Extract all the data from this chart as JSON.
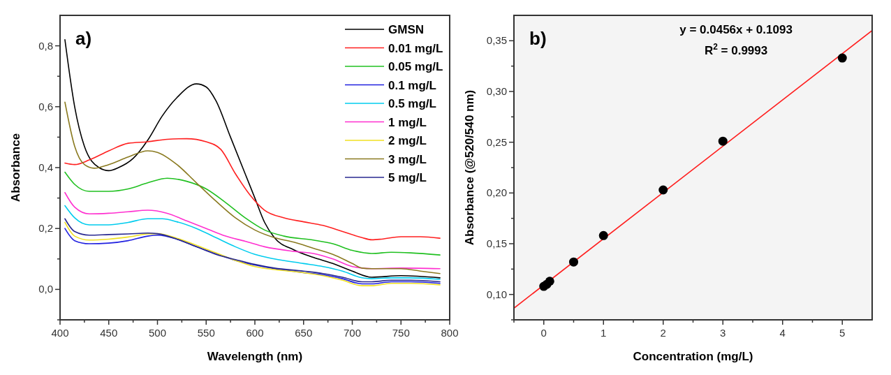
{
  "chart_data": [
    {
      "type": "line",
      "xlabel": "Wavelength (nm)",
      "ylabel": "Absorbance",
      "annotations": [
        "a)"
      ],
      "legend": "top right",
      "xlim": [
        400,
        800
      ],
      "ylim": [
        -0.1,
        0.9
      ],
      "xticks": [
        400,
        {
          "value": 425,
          "label": null
        },
        450,
        {
          "value": 475,
          "label": null
        },
        500,
        {
          "value": 525,
          "label": null
        },
        550,
        {
          "value": 575,
          "label": null
        },
        600,
        {
          "value": 625,
          "label": null
        },
        650,
        {
          "value": 675,
          "label": null
        },
        700,
        {
          "value": 725,
          "label": null
        },
        750,
        {
          "value": 775,
          "label": null
        },
        800
      ],
      "yticks": [
        {
          "value": -0.1,
          "label": null
        },
        {
          "value": 0,
          "label": "0,0"
        },
        {
          "value": 0.1,
          "label": null
        },
        {
          "value": 0.2,
          "label": "0,2"
        },
        {
          "value": 0.3,
          "label": null
        },
        {
          "value": 0.4,
          "label": "0,4"
        },
        {
          "value": 0.5,
          "label": null
        },
        {
          "value": 0.6,
          "label": "0,6"
        },
        {
          "value": 0.7,
          "label": null
        },
        {
          "value": 0.8,
          "label": "0,8"
        }
      ],
      "series": [
        {
          "name": "GMSN",
          "color": "#000000",
          "x": [
            405,
            415,
            425,
            440,
            450,
            460,
            475,
            490,
            505,
            520,
            540,
            550,
            560,
            575,
            590,
            600,
            610,
            620,
            640,
            660,
            680,
            700,
            720,
            750,
            790
          ],
          "values": [
            0.82,
            0.6,
            0.47,
            0.4,
            0.39,
            0.4,
            0.43,
            0.49,
            0.57,
            0.63,
            0.675,
            0.665,
            0.62,
            0.5,
            0.38,
            0.3,
            0.22,
            0.17,
            0.13,
            0.105,
            0.085,
            0.06,
            0.04,
            0.045,
            0.038
          ]
        },
        {
          "name": "0.01 mg/L",
          "color": "#ff2020",
          "x": [
            405,
            415,
            430,
            450,
            470,
            490,
            510,
            530,
            550,
            565,
            580,
            595,
            610,
            630,
            650,
            670,
            690,
            710,
            720,
            730,
            750,
            770,
            790
          ],
          "values": [
            0.415,
            0.41,
            0.425,
            0.455,
            0.48,
            0.485,
            0.493,
            0.495,
            0.485,
            0.46,
            0.38,
            0.31,
            0.26,
            0.235,
            0.222,
            0.21,
            0.19,
            0.17,
            0.163,
            0.165,
            0.173,
            0.173,
            0.168
          ]
        },
        {
          "name": "0.05 mg/L",
          "color": "#20c020",
          "x": [
            405,
            415,
            430,
            450,
            470,
            490,
            510,
            530,
            550,
            570,
            590,
            610,
            630,
            660,
            680,
            700,
            720,
            740,
            760,
            790
          ],
          "values": [
            0.385,
            0.345,
            0.322,
            0.322,
            0.33,
            0.35,
            0.365,
            0.355,
            0.33,
            0.285,
            0.235,
            0.195,
            0.175,
            0.162,
            0.15,
            0.128,
            0.118,
            0.122,
            0.12,
            0.113
          ]
        },
        {
          "name": "0.1 mg/L",
          "color": "#2020e0",
          "x": [
            405,
            415,
            430,
            450,
            470,
            490,
            500,
            520,
            540,
            560,
            580,
            600,
            620,
            650,
            670,
            690,
            710,
            720,
            740,
            760,
            790
          ],
          "values": [
            0.2,
            0.16,
            0.15,
            0.152,
            0.16,
            0.175,
            0.178,
            0.165,
            0.14,
            0.118,
            0.095,
            0.08,
            0.068,
            0.055,
            0.048,
            0.035,
            0.018,
            0.018,
            0.025,
            0.025,
            0.02
          ]
        },
        {
          "name": "0.5 mg/L",
          "color": "#00ccee",
          "x": [
            405,
            415,
            430,
            450,
            470,
            490,
            505,
            520,
            540,
            560,
            580,
            600,
            620,
            650,
            670,
            690,
            710,
            720,
            740,
            760,
            790
          ],
          "values": [
            0.275,
            0.235,
            0.212,
            0.212,
            0.22,
            0.232,
            0.232,
            0.222,
            0.2,
            0.17,
            0.14,
            0.115,
            0.1,
            0.085,
            0.075,
            0.06,
            0.038,
            0.035,
            0.038,
            0.038,
            0.033
          ]
        },
        {
          "name": "1 mg/L",
          "color": "#ff30d0",
          "x": [
            405,
            415,
            430,
            450,
            470,
            490,
            510,
            530,
            550,
            570,
            590,
            610,
            640,
            660,
            680,
            700,
            720,
            750,
            790
          ],
          "values": [
            0.318,
            0.27,
            0.248,
            0.25,
            0.255,
            0.26,
            0.25,
            0.225,
            0.2,
            0.175,
            0.158,
            0.14,
            0.125,
            0.118,
            0.1,
            0.075,
            0.068,
            0.07,
            0.068
          ]
        },
        {
          "name": "2 mg/L",
          "color": "#f0e020",
          "x": [
            405,
            415,
            430,
            450,
            470,
            490,
            500,
            520,
            540,
            560,
            580,
            600,
            620,
            650,
            670,
            690,
            710,
            720,
            740,
            760,
            790
          ],
          "values": [
            0.22,
            0.175,
            0.162,
            0.165,
            0.172,
            0.182,
            0.183,
            0.168,
            0.145,
            0.12,
            0.095,
            0.075,
            0.065,
            0.055,
            0.045,
            0.03,
            0.012,
            0.012,
            0.02,
            0.02,
            0.015
          ]
        },
        {
          "name": "3 mg/L",
          "color": "#8a7a20",
          "x": [
            405,
            415,
            425,
            435,
            450,
            470,
            490,
            500,
            520,
            540,
            560,
            580,
            600,
            620,
            640,
            660,
            680,
            700,
            710,
            720,
            750,
            770,
            790
          ],
          "values": [
            0.615,
            0.47,
            0.41,
            0.398,
            0.41,
            0.435,
            0.455,
            0.45,
            0.41,
            0.35,
            0.29,
            0.235,
            0.195,
            0.17,
            0.155,
            0.135,
            0.115,
            0.085,
            0.07,
            0.068,
            0.068,
            0.06,
            0.052
          ]
        },
        {
          "name": "5 mg/L",
          "color": "#282890",
          "x": [
            405,
            415,
            430,
            450,
            470,
            490,
            500,
            520,
            540,
            560,
            580,
            600,
            620,
            650,
            670,
            690,
            710,
            720,
            740,
            760,
            790
          ],
          "values": [
            0.232,
            0.19,
            0.178,
            0.18,
            0.182,
            0.185,
            0.183,
            0.165,
            0.14,
            0.115,
            0.098,
            0.082,
            0.07,
            0.06,
            0.052,
            0.04,
            0.025,
            0.025,
            0.03,
            0.03,
            0.025
          ]
        }
      ]
    },
    {
      "type": "scatter",
      "xlabel": "Concentration (mg/L)",
      "ylabel": "Absorbance (@520/540 nm)",
      "annotations": [
        "b)",
        "y = 0.0456x + 0.1093",
        "R$^{2}$ = 0.9993"
      ],
      "xlim": [
        -0.5,
        5.5
      ],
      "ylim": [
        0.075,
        0.375
      ],
      "xticks": [
        {
          "value": -0.5,
          "label": null
        },
        0,
        {
          "value": 0.5,
          "label": null
        },
        1,
        {
          "value": 1.5,
          "label": null
        },
        2,
        {
          "value": 2.5,
          "label": null
        },
        3,
        {
          "value": 3.5,
          "label": null
        },
        4,
        {
          "value": 4.5,
          "label": null
        },
        5
      ],
      "yticks": [
        {
          "value": 0.075,
          "label": null
        },
        {
          "value": 0.1,
          "label": "0,10"
        },
        {
          "value": 0.125,
          "label": null
        },
        {
          "value": 0.15,
          "label": "0,15"
        },
        {
          "value": 0.175,
          "label": null
        },
        {
          "value": 0.2,
          "label": "0,20"
        },
        {
          "value": 0.225,
          "label": null
        },
        {
          "value": 0.25,
          "label": "0,25"
        },
        {
          "value": 0.275,
          "label": null
        },
        {
          "value": 0.3,
          "label": "0,30"
        },
        {
          "value": 0.325,
          "label": null
        },
        {
          "value": 0.35,
          "label": "0,35"
        }
      ],
      "series": [
        {
          "type": "line",
          "marker": "none",
          "color": "#ff2020",
          "x": [
            -0.5,
            5.5
          ],
          "values": [
            0.0865,
            0.3601
          ]
        },
        {
          "marker": "circle",
          "color": "#000000",
          "x": [
            0,
            0.01,
            0.05,
            0.1,
            0.5,
            1,
            2,
            3,
            5
          ],
          "values": [
            0.108,
            null,
            0.11,
            0.113,
            0.132,
            0.158,
            0.203,
            0.251,
            0.333
          ]
        }
      ]
    }
  ]
}
